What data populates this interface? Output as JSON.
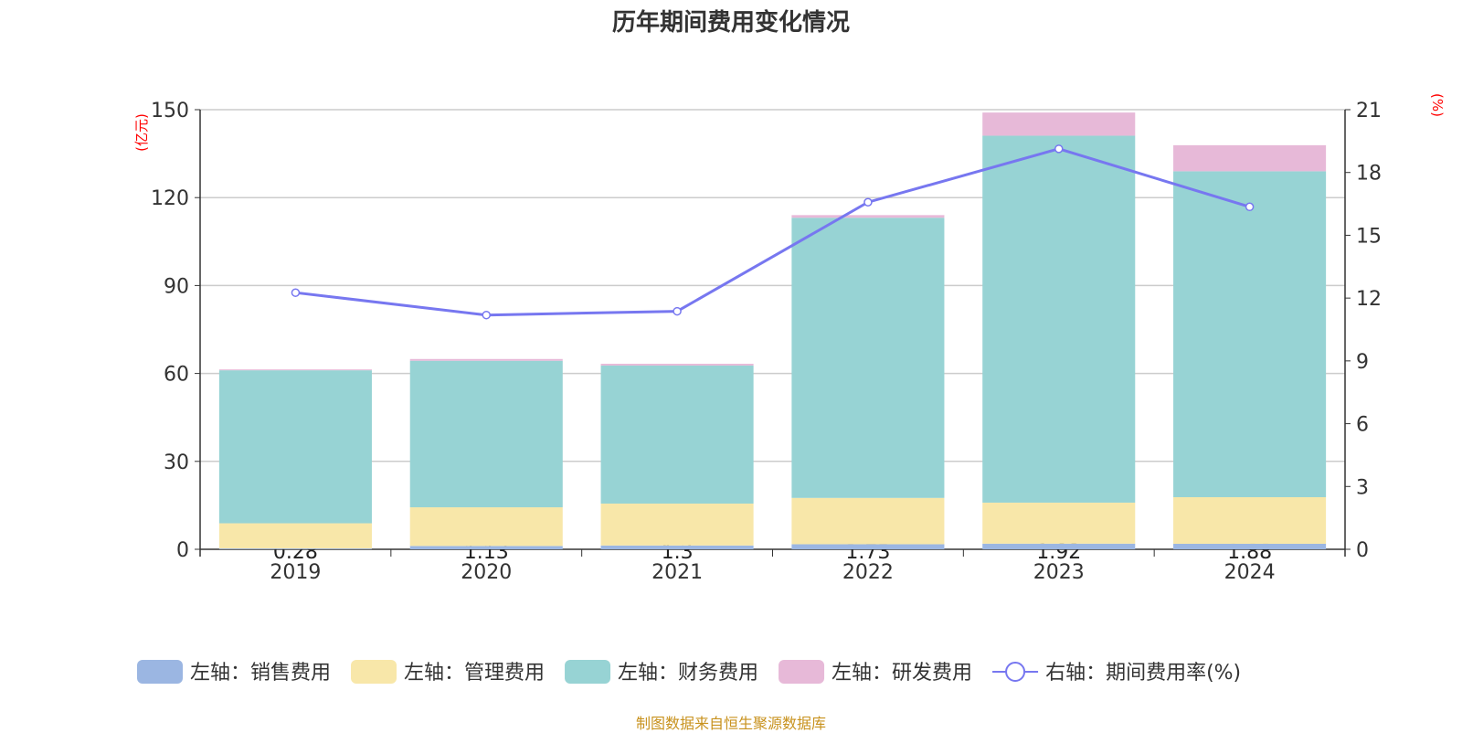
{
  "chart_data": {
    "type": "bar",
    "title": "历年期间费用变化情况",
    "left_unit": "(亿元)",
    "right_unit": "(%)",
    "categories": [
      "2019",
      "2020",
      "2021",
      "2022",
      "2023",
      "2024"
    ],
    "ylim_left": [
      0,
      150
    ],
    "yticks_left": [
      0,
      30,
      60,
      90,
      120,
      150
    ],
    "ylim_right": [
      0,
      21
    ],
    "yticks_right": [
      0,
      3,
      6,
      9,
      12,
      15,
      18,
      21
    ],
    "grid": true,
    "legend_position": "bottom",
    "series": [
      {
        "name": "左轴：销售费用",
        "axis": "left",
        "stack": true,
        "color": "#9bb6e2",
        "values": [
          0.28,
          1.13,
          1.3,
          1.73,
          1.92,
          1.88
        ],
        "labels": [
          "0.28",
          "1.13",
          "1.3",
          "1.73",
          "1.92",
          "1.88"
        ]
      },
      {
        "name": "左轴：管理费用",
        "axis": "left",
        "stack": true,
        "color": "#f8e7a9",
        "values": [
          8.6,
          13.2,
          14.3,
          15.8,
          14.0,
          15.9
        ]
      },
      {
        "name": "左轴：财务费用",
        "axis": "left",
        "stack": true,
        "color": "#97d3d4",
        "values": [
          52.2,
          50.0,
          47.1,
          95.6,
          125.2,
          111.2
        ]
      },
      {
        "name": "左轴：研发费用",
        "axis": "left",
        "stack": true,
        "color": "#e7b9d8",
        "values": [
          0.3,
          0.6,
          0.6,
          0.9,
          7.9,
          8.9
        ]
      },
      {
        "name": "右轴：期间费用率(%)",
        "axis": "right",
        "type": "line",
        "color": "#7777f0",
        "values": [
          12.26,
          11.19,
          11.37,
          16.58,
          19.13,
          16.36
        ]
      }
    ]
  },
  "footer": {
    "source": "制图数据来自恒生聚源数据库"
  }
}
